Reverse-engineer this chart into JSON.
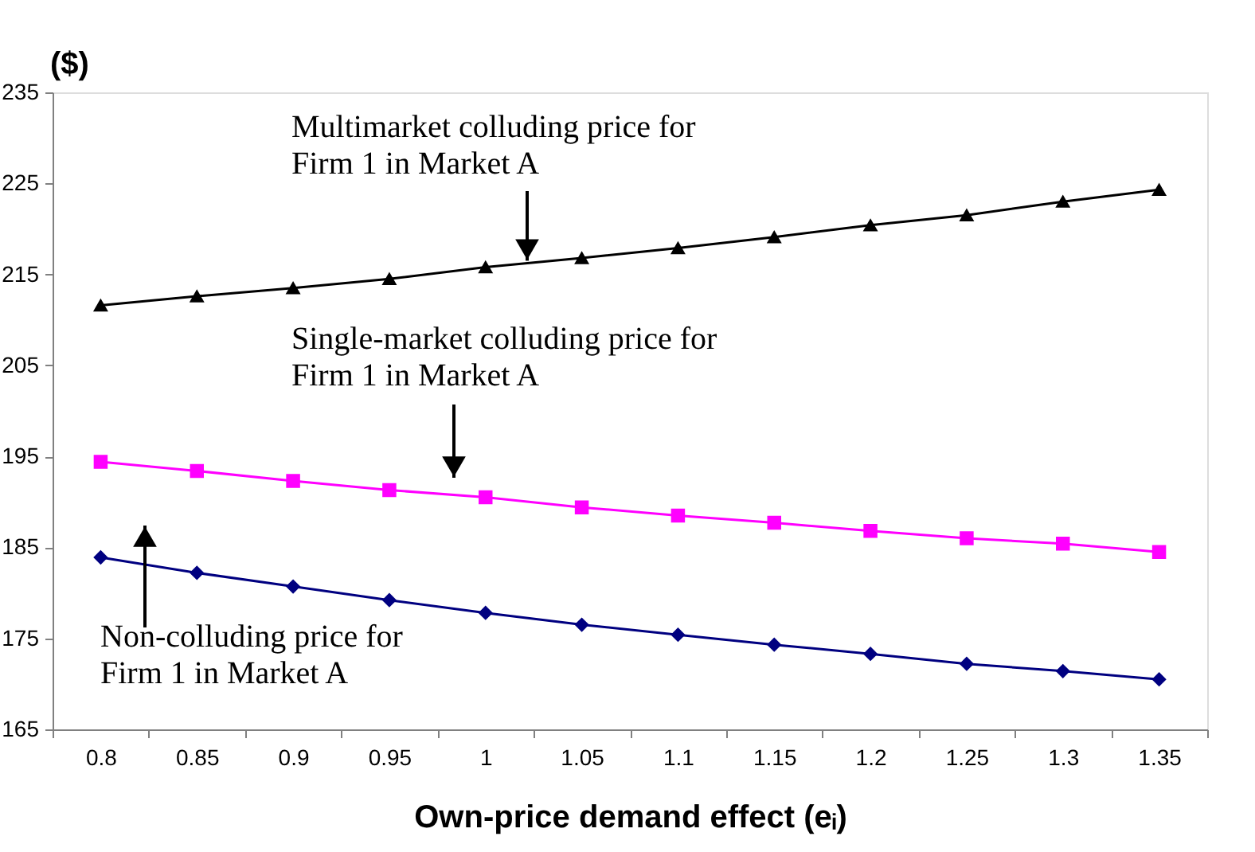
{
  "chart_data": {
    "type": "line",
    "ylabel": "($)",
    "xlabel": "Own-price demand effect (eᵢ)",
    "categories": [
      "0.8",
      "0.85",
      "0.9",
      "0.95",
      "1",
      "1.05",
      "1.1",
      "1.15",
      "1.2",
      "1.25",
      "1.3",
      "1.35"
    ],
    "series": [
      {
        "color": "#000000",
        "marker": "triangle",
        "values": [
          211.6,
          212.6,
          213.5,
          214.5,
          215.8,
          216.8,
          217.9,
          219.1,
          220.4,
          221.5,
          223.0,
          224.3
        ]
      },
      {
        "color": "#ff00ff",
        "marker": "square",
        "values": [
          194.4,
          193.4,
          192.3,
          191.3,
          190.5,
          189.4,
          188.5,
          187.7,
          186.8,
          186.0,
          185.4,
          184.5
        ]
      },
      {
        "color": "#000080",
        "marker": "diamond",
        "values": [
          183.9,
          182.2,
          180.7,
          179.2,
          177.8,
          176.5,
          175.4,
          174.3,
          173.3,
          172.2,
          171.4,
          170.5
        ]
      }
    ],
    "ylim": [
      165,
      235
    ],
    "yticks": [
      165,
      175,
      185,
      195,
      205,
      215,
      225,
      235
    ],
    "annotations": [
      {
        "text": "Multimarket colluding price for\nFirm 1 in Market A",
        "y": 216.5
      },
      "Single-market colluding price for\nFirm 1 in Market A",
      "Non-colluding price for\nFirm 1 in Market A"
    ],
    "grid": false,
    "line_style": "solid"
  }
}
